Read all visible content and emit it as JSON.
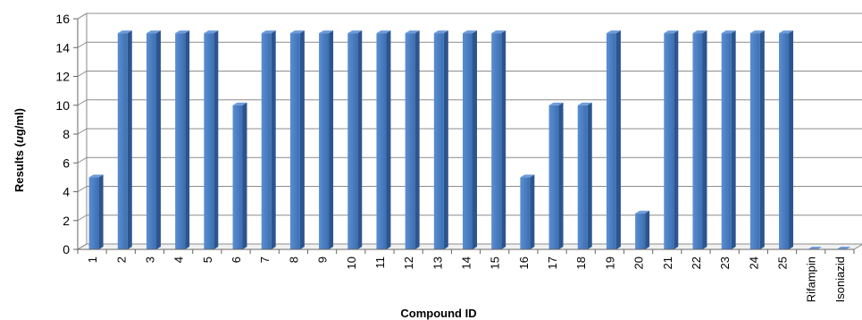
{
  "chart_data": {
    "type": "bar",
    "title": "",
    "xlabel": "Compound ID",
    "ylabel": "Results (μg/ml)",
    "ylim": [
      0,
      16
    ],
    "yticks": [
      0,
      2,
      4,
      6,
      8,
      10,
      12,
      14,
      16
    ],
    "grid": true,
    "legend": "none",
    "bar_color": "#4F81BD",
    "categories": [
      "1",
      "2",
      "3",
      "4",
      "5",
      "6",
      "7",
      "8",
      "9",
      "10",
      "11",
      "12",
      "13",
      "14",
      "15",
      "16",
      "17",
      "18",
      "19",
      "20",
      "21",
      "22",
      "23",
      "24",
      "25",
      "Rifampin",
      "Isoniazid"
    ],
    "values": [
      5,
      15,
      15,
      15,
      15,
      10,
      15,
      15,
      15,
      15,
      15,
      15,
      15,
      15,
      15,
      5,
      10,
      10,
      15,
      2.5,
      15,
      15,
      15,
      15,
      15,
      0,
      0
    ]
  }
}
